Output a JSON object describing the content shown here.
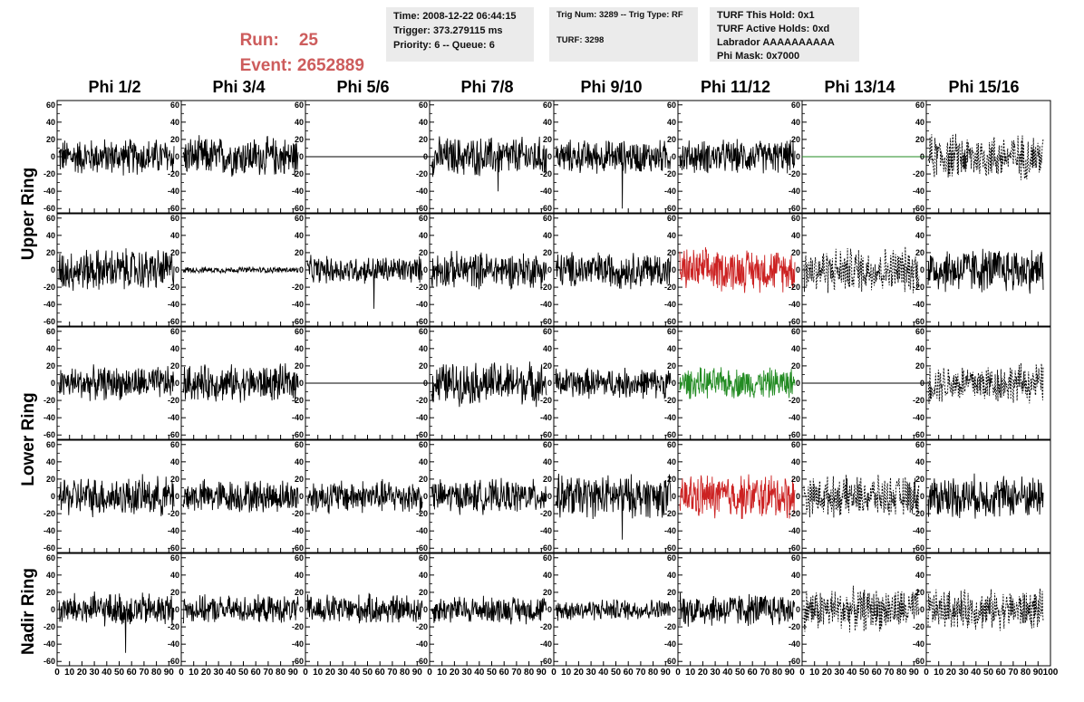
{
  "header": {
    "run_label": "Run:",
    "run_value": "25",
    "event_label": "Event:",
    "event_value": "2652889",
    "time": "Time: 2008-12-22 06:44:15",
    "trigger": "Trigger: 373.279115 ms",
    "priority": "Priority: 6 -- Queue: 6",
    "trig_num": "Trig Num: 3289 -- Trig Type: RF",
    "turf": "TURF: 3298",
    "turf_hold": "TURF This Hold: 0x1",
    "turf_active": "TURF Active Holds: 0xd",
    "labrador": "Labrador AAAAAAAAAA",
    "phi_mask": "Phi Mask: 0x7000"
  },
  "columns": [
    "Phi 1/2",
    "Phi 3/4",
    "Phi 5/6",
    "Phi 7/8",
    "Phi 9/10",
    "Phi 11/12",
    "Phi 13/14",
    "Phi 15/16"
  ],
  "row_groups": [
    "Upper Ring",
    "Lower Ring",
    "Nadir Ring"
  ],
  "colors": {
    "run_text": "#cd5c5c",
    "trace": "#000000",
    "red_trace": "#cc2222",
    "green_trace": "#228b22"
  },
  "chart_data": {
    "type": "line",
    "xlim": [
      0,
      100
    ],
    "ylim": [
      -65,
      65
    ],
    "yticks": [
      -60,
      -40,
      -20,
      0,
      20,
      40,
      60
    ],
    "xticks": [
      0,
      10,
      20,
      30,
      40,
      50,
      60,
      70,
      80,
      90,
      100
    ],
    "x_tick_labels_row": [
      "0",
      "10",
      "20",
      "30",
      "40",
      "50",
      "60",
      "70",
      "80",
      "90",
      "100"
    ],
    "rows": [
      {
        "group": "Upper Ring",
        "cells": [
          {
            "kind": "noise",
            "amp": 24,
            "color": "black"
          },
          {
            "kind": "noise",
            "amp": 26,
            "color": "black"
          },
          {
            "kind": "flat",
            "color": "black"
          },
          {
            "kind": "noise",
            "amp": 26,
            "color": "black",
            "spike": -40
          },
          {
            "kind": "noise",
            "amp": 22,
            "color": "black",
            "spike": -60
          },
          {
            "kind": "noise",
            "amp": 22,
            "color": "black"
          },
          {
            "kind": "flat",
            "color": "green"
          },
          {
            "kind": "dashed",
            "amp": 30,
            "color": "black"
          }
        ]
      },
      {
        "group": "Upper Ring",
        "cells": [
          {
            "kind": "noise",
            "amp": 28,
            "color": "black"
          },
          {
            "kind": "noise",
            "amp": 4,
            "color": "black"
          },
          {
            "kind": "noise",
            "amp": 18,
            "color": "black",
            "spike": -45
          },
          {
            "kind": "noise",
            "amp": 24,
            "color": "black"
          },
          {
            "kind": "noise",
            "amp": 24,
            "color": "black"
          },
          {
            "kind": "noise",
            "amp": 28,
            "color": "red"
          },
          {
            "kind": "dashed",
            "amp": 30,
            "color": "black"
          },
          {
            "kind": "noise",
            "amp": 30,
            "color": "black"
          }
        ]
      },
      {
        "group": "Lower Ring",
        "cells": [
          {
            "kind": "noise",
            "amp": 22,
            "color": "black"
          },
          {
            "kind": "noise",
            "amp": 24,
            "color": "black"
          },
          {
            "kind": "flat",
            "color": "black"
          },
          {
            "kind": "noise",
            "amp": 28,
            "color": "black"
          },
          {
            "kind": "noise",
            "amp": 20,
            "color": "black"
          },
          {
            "kind": "noise",
            "amp": 20,
            "color": "green"
          },
          {
            "kind": "flat",
            "color": "black"
          },
          {
            "kind": "dashed",
            "amp": 26,
            "color": "black"
          }
        ]
      },
      {
        "group": "Lower Ring",
        "cells": [
          {
            "kind": "noise",
            "amp": 26,
            "color": "black"
          },
          {
            "kind": "noise",
            "amp": 22,
            "color": "black"
          },
          {
            "kind": "noise",
            "amp": 22,
            "color": "black"
          },
          {
            "kind": "noise",
            "amp": 22,
            "color": "black"
          },
          {
            "kind": "noise",
            "amp": 28,
            "color": "black",
            "spike": -50
          },
          {
            "kind": "noise",
            "amp": 30,
            "color": "red"
          },
          {
            "kind": "dashed",
            "amp": 26,
            "color": "black"
          },
          {
            "kind": "noise",
            "amp": 28,
            "color": "black"
          }
        ]
      },
      {
        "group": "Nadir Ring",
        "cells": [
          {
            "kind": "noise",
            "amp": 22,
            "color": "black",
            "spike": -50
          },
          {
            "kind": "noise",
            "amp": 18,
            "color": "black"
          },
          {
            "kind": "noise",
            "amp": 20,
            "color": "black"
          },
          {
            "kind": "noise",
            "amp": 18,
            "color": "black"
          },
          {
            "kind": "noise",
            "amp": 14,
            "color": "black"
          },
          {
            "kind": "noise",
            "amp": 22,
            "color": "black"
          },
          {
            "kind": "dashed",
            "amp": 28,
            "color": "black"
          },
          {
            "kind": "dashed",
            "amp": 26,
            "color": "black"
          }
        ]
      }
    ]
  }
}
